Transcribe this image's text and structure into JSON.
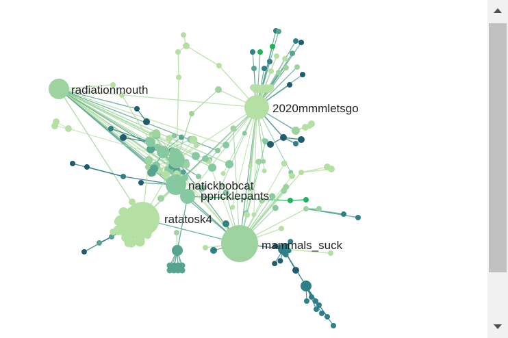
{
  "graph": {
    "colors": {
      "pale": "#b5e0a3",
      "light": "#9ed39f",
      "mid": "#86c9a0",
      "teal": "#56a38f",
      "deepteal": "#2f7f86",
      "navy": "#1f5c6e",
      "green": "#20b35a"
    },
    "labeled_nodes": [
      {
        "id": "radiationmouth",
        "label": "radiationmouth"
      },
      {
        "id": "2020mmmletsgo",
        "label": "2020mmmletsgo"
      },
      {
        "id": "natickbobcat",
        "label": "natickbobcat"
      },
      {
        "id": "ppricklepants",
        "label": "ppricklepants"
      },
      {
        "id": "ratatosk4",
        "label": "ratatosk4"
      },
      {
        "id": "mammals_suck",
        "label": "mammals_suck"
      }
    ]
  },
  "scrollbar": {
    "up_icon": "triangle-up",
    "down_icon": "triangle-down"
  }
}
